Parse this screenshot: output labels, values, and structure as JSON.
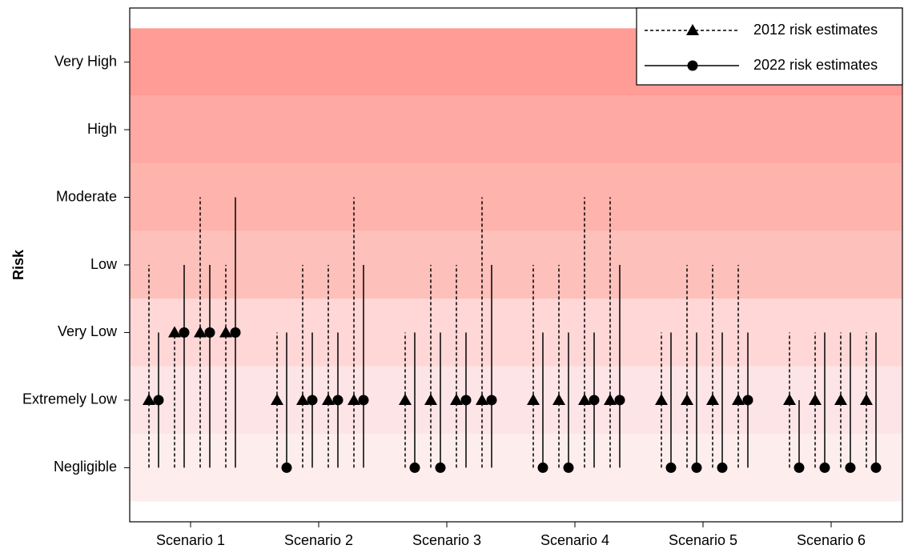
{
  "chart_data": {
    "type": "range-dot",
    "y_label": "Risk",
    "categories": [
      "Scenario 1",
      "Scenario 2",
      "Scenario 3",
      "Scenario 4",
      "Scenario 5",
      "Scenario 6"
    ],
    "ylim": [
      0.2,
      7.8
    ],
    "yticks": [
      {
        "value": 1,
        "label": "Negligible"
      },
      {
        "value": 2,
        "label": "Extremely Low"
      },
      {
        "value": 3,
        "label": "Very Low"
      },
      {
        "value": 4,
        "label": "Low"
      },
      {
        "value": 5,
        "label": "Moderate"
      },
      {
        "value": 6,
        "label": "High"
      },
      {
        "value": 7,
        "label": "Very High"
      }
    ],
    "band_colors": [
      "#fdeeed",
      "#fde4e6",
      "#fed7d6",
      "#fec0bb",
      "#feb3ad",
      "#fea9a3",
      "#fe9c95"
    ],
    "legend_position": "top-right",
    "series": [
      {
        "name": "2012 risk estimates",
        "color": "#000000",
        "marker": "triangle",
        "line": "dashed",
        "values": [
          [
            2,
            3,
            3,
            3
          ],
          [
            2,
            2,
            2,
            2
          ],
          [
            2,
            2,
            2,
            2
          ],
          [
            2,
            2,
            2,
            2
          ],
          [
            2,
            2,
            2,
            2
          ],
          [
            2,
            2,
            2,
            2
          ]
        ],
        "low": [
          [
            1,
            1,
            1,
            1
          ],
          [
            1,
            1,
            1,
            1
          ],
          [
            1,
            1,
            1,
            1
          ],
          [
            1,
            1,
            1,
            1
          ],
          [
            1,
            1,
            1,
            1
          ],
          [
            1,
            1,
            1,
            1
          ]
        ],
        "high": [
          [
            4,
            3,
            5,
            4
          ],
          [
            3,
            4,
            4,
            5
          ],
          [
            3,
            4,
            4,
            5
          ],
          [
            4,
            4,
            5,
            5
          ],
          [
            3,
            4,
            4,
            4
          ],
          [
            3,
            3,
            3,
            3
          ]
        ]
      },
      {
        "name": "2022 risk estimates",
        "color": "#000000",
        "marker": "circle",
        "line": "solid",
        "values": [
          [
            2,
            3,
            3,
            3
          ],
          [
            1,
            2,
            2,
            2
          ],
          [
            1,
            1,
            2,
            2
          ],
          [
            1,
            1,
            2,
            2
          ],
          [
            1,
            1,
            1,
            2
          ],
          [
            1,
            1,
            1,
            1
          ]
        ],
        "low": [
          [
            1,
            1,
            1,
            1
          ],
          [
            1,
            1,
            1,
            1
          ],
          [
            1,
            1,
            1,
            1
          ],
          [
            1,
            1,
            1,
            1
          ],
          [
            1,
            1,
            1,
            1
          ],
          [
            1,
            1,
            1,
            1
          ]
        ],
        "high": [
          [
            3,
            4,
            4,
            5
          ],
          [
            3,
            3,
            3,
            4
          ],
          [
            3,
            3,
            3,
            4
          ],
          [
            3,
            3,
            3,
            4
          ],
          [
            3,
            3,
            3,
            3
          ],
          [
            2,
            3,
            3,
            3
          ]
        ]
      }
    ]
  }
}
